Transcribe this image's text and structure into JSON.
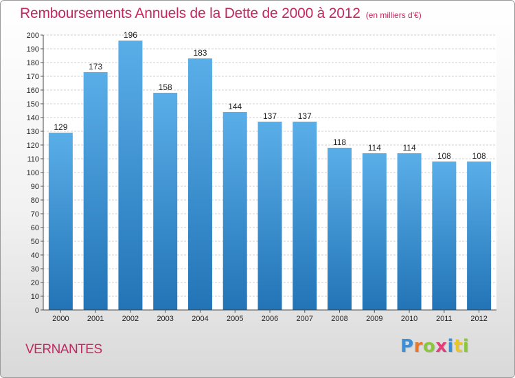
{
  "title": "Remboursements Annuels de la Dette de 2000 à 2012",
  "unit_note": "(en milliers d'€)",
  "city": "VERNANTES",
  "logo": {
    "letters": [
      "P",
      "r",
      "o",
      "x",
      "i",
      "t",
      "i"
    ],
    "colors": [
      "#3a8fd6",
      "#e8772a",
      "#8cc63f",
      "#e43d7a",
      "#3a8fd6",
      "#e8c52a",
      "#8cc63f"
    ]
  },
  "colors": {
    "title": "#c2285f",
    "bar_light": "#5aaee8",
    "bar_dark": "#2274b6",
    "grid": "#d0d0d0"
  },
  "chart_data": {
    "type": "bar",
    "categories": [
      "2000",
      "2001",
      "2002",
      "2003",
      "2004",
      "2005",
      "2006",
      "2007",
      "2008",
      "2009",
      "2010",
      "2011",
      "2012"
    ],
    "values": [
      129,
      173,
      196,
      158,
      183,
      144,
      137,
      137,
      118,
      114,
      114,
      108,
      108
    ],
    "ylim": [
      0,
      200
    ],
    "ytick_step": 10,
    "grid": true
  }
}
